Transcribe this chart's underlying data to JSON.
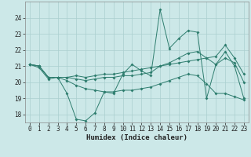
{
  "xlabel": "Humidex (Indice chaleur)",
  "ylabel": "",
  "bg_color": "#cce8e8",
  "line_color": "#2e7d6e",
  "grid_color": "#aacfcf",
  "xlim": [
    -0.5,
    23.5
  ],
  "ylim": [
    17.5,
    25.0
  ],
  "yticks": [
    18,
    19,
    20,
    21,
    22,
    23,
    24
  ],
  "xticks": [
    0,
    1,
    2,
    3,
    4,
    5,
    6,
    7,
    8,
    9,
    10,
    11,
    12,
    13,
    14,
    15,
    16,
    17,
    18,
    19,
    20,
    21,
    22,
    23
  ],
  "line1_x": [
    0,
    1,
    2,
    3,
    4,
    5,
    6,
    7,
    8,
    9,
    10,
    11,
    12,
    13,
    14,
    15,
    16,
    17,
    18,
    19,
    20,
    21,
    22,
    23
  ],
  "line1_y": [
    21.1,
    21.0,
    20.3,
    20.3,
    19.3,
    17.7,
    17.6,
    18.1,
    19.4,
    19.3,
    20.5,
    21.1,
    20.7,
    20.4,
    24.5,
    22.1,
    22.7,
    23.2,
    23.1,
    19.0,
    21.1,
    21.9,
    21.0,
    19.0
  ],
  "line2_x": [
    0,
    1,
    2,
    3,
    4,
    5,
    6,
    7,
    8,
    9,
    10,
    11,
    12,
    13,
    14,
    15,
    16,
    17,
    18,
    19,
    20,
    21,
    22,
    23
  ],
  "line2_y": [
    21.1,
    20.9,
    20.2,
    20.3,
    20.3,
    20.4,
    20.3,
    20.4,
    20.5,
    20.5,
    20.6,
    20.7,
    20.8,
    20.9,
    21.0,
    21.1,
    21.2,
    21.3,
    21.4,
    21.5,
    21.6,
    22.3,
    21.5,
    20.5
  ],
  "line3_x": [
    0,
    1,
    2,
    3,
    4,
    5,
    6,
    7,
    8,
    9,
    10,
    11,
    12,
    13,
    14,
    15,
    16,
    17,
    18,
    19,
    20,
    21,
    22,
    23
  ],
  "line3_y": [
    21.1,
    21.0,
    20.3,
    20.3,
    20.3,
    20.2,
    20.1,
    20.2,
    20.3,
    20.3,
    20.4,
    20.4,
    20.5,
    20.6,
    21.0,
    21.2,
    21.5,
    21.8,
    21.9,
    21.5,
    21.1,
    21.5,
    21.2,
    20.0
  ],
  "line4_x": [
    0,
    1,
    2,
    3,
    4,
    5,
    6,
    7,
    8,
    9,
    10,
    11,
    12,
    13,
    14,
    15,
    16,
    17,
    18,
    19,
    20,
    21,
    22,
    23
  ],
  "line4_y": [
    21.1,
    21.0,
    20.3,
    20.3,
    20.1,
    19.8,
    19.6,
    19.5,
    19.4,
    19.4,
    19.5,
    19.5,
    19.6,
    19.7,
    19.9,
    20.1,
    20.3,
    20.5,
    20.4,
    19.9,
    19.3,
    19.3,
    19.1,
    18.9
  ],
  "marker": "D",
  "markersize": 2.0,
  "linewidth": 0.7,
  "xlabel_fontsize": 6.5,
  "tick_fontsize": 5.5
}
